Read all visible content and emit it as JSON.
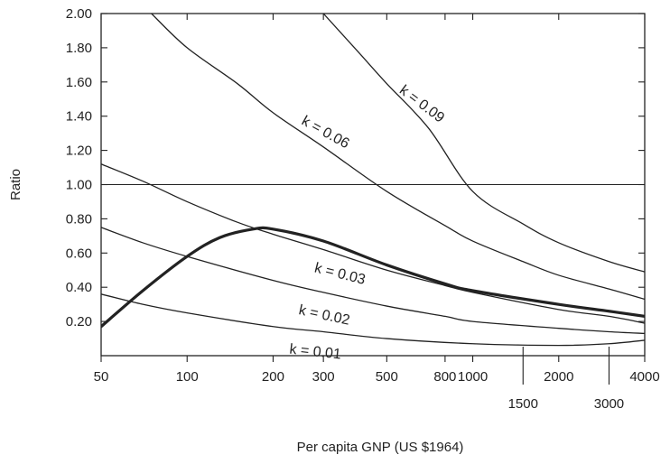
{
  "chart_data": {
    "type": "line",
    "title": "",
    "xlabel": "Per capita GNP (US $1964)",
    "ylabel": "Ratio",
    "x_scale": "log",
    "xlim": [
      50,
      4000
    ],
    "ylim": [
      0.0,
      2.0
    ],
    "x_ticks_top": [
      "50",
      "100",
      "200",
      "300",
      "500",
      "800",
      "1000",
      "2000",
      "4000"
    ],
    "x_ticks_bottom": [
      "1500",
      "3000"
    ],
    "y_ticks": [
      "0.20",
      "0.40",
      "0.60",
      "0.80",
      "1.00",
      "1.20",
      "1.40",
      "1.60",
      "1.80",
      "2.00"
    ],
    "reference_line": {
      "y": 1.0
    },
    "grid": false,
    "series": [
      {
        "name": "k = 0.09",
        "x": [
          300,
          400,
          500,
          700,
          1000,
          1500,
          2000,
          3000,
          4000
        ],
        "y": [
          2.0,
          1.77,
          1.59,
          1.33,
          0.96,
          0.77,
          0.66,
          0.55,
          0.49
        ]
      },
      {
        "name": "k = 0.06",
        "x": [
          75,
          100,
          150,
          200,
          300,
          500,
          800,
          1000,
          1500,
          2000,
          3000,
          4000
        ],
        "y": [
          2.0,
          1.8,
          1.59,
          1.42,
          1.22,
          0.96,
          0.76,
          0.67,
          0.55,
          0.47,
          0.39,
          0.33
        ]
      },
      {
        "name": "k = 0.03",
        "x": [
          50,
          70,
          100,
          150,
          200,
          300,
          500,
          800,
          1000,
          2000,
          3000,
          4000
        ],
        "y": [
          1.12,
          1.02,
          0.9,
          0.78,
          0.71,
          0.62,
          0.5,
          0.41,
          0.37,
          0.27,
          0.23,
          0.19
        ]
      },
      {
        "name": "k = 0.02",
        "x": [
          50,
          70,
          100,
          200,
          300,
          500,
          800,
          1000,
          2000,
          3000,
          4000
        ],
        "y": [
          0.75,
          0.66,
          0.58,
          0.44,
          0.37,
          0.29,
          0.23,
          0.2,
          0.16,
          0.14,
          0.13
        ]
      },
      {
        "name": "k = 0.01",
        "x": [
          50,
          70,
          100,
          200,
          300,
          500,
          1000,
          2000,
          3000,
          4000
        ],
        "y": [
          0.36,
          0.3,
          0.25,
          0.17,
          0.14,
          0.1,
          0.07,
          0.06,
          0.07,
          0.09
        ]
      },
      {
        "name": "",
        "emphasis": true,
        "x": [
          50,
          70,
          100,
          130,
          170,
          200,
          300,
          500,
          800,
          1000,
          2000,
          3000,
          4000
        ],
        "y": [
          0.17,
          0.38,
          0.58,
          0.69,
          0.74,
          0.74,
          0.67,
          0.53,
          0.42,
          0.38,
          0.3,
          0.26,
          0.23
        ]
      }
    ]
  }
}
